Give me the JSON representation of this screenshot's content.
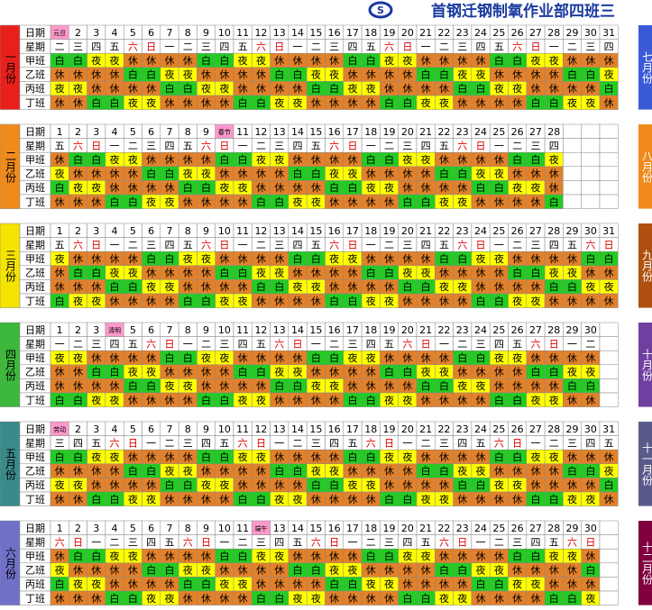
{
  "header": {
    "title": "首钢迁钢制氧作业部四班三"
  },
  "row_labels": [
    "日期",
    "星期",
    "甲班",
    "乙班",
    "丙班",
    "丁班"
  ],
  "months": [
    {
      "name": "一月份",
      "color": "#e8201c",
      "days": [
        "元旦",
        2,
        3,
        4,
        5,
        6,
        7,
        8,
        9,
        10,
        11,
        12,
        13,
        14,
        15,
        16,
        17,
        18,
        19,
        20,
        21,
        22,
        23,
        24,
        25,
        26,
        27,
        28,
        29,
        30,
        31
      ],
      "weekdays": "二三四五六日一二三四五六日一二三四五六日一二三四五六日一二三四",
      "shifts": [
        "白白夜夜休休休休白白夜夜休休休休白白夜夜休休休休白白夜夜休休休",
        "休休休休白白夜夜休休休休白白夜夜休休休休白白夜夜休休休休白白夜",
        "夜夜休休休休白白夜夜休休休休白白夜夜休休休休白白夜夜休休休休白",
        "休休白白夜夜休休休休白白夜夜休休休休白白夜夜休休休休白白夜夜休"
      ]
    },
    {
      "name": "二月份",
      "color": "#f08a1c",
      "days": [
        1,
        2,
        3,
        4,
        5,
        6,
        7,
        8,
        9,
        "春节",
        11,
        12,
        13,
        14,
        15,
        16,
        17,
        18,
        19,
        20,
        21,
        22,
        23,
        24,
        25,
        26,
        27,
        28
      ],
      "weekdays": "五六日一二三四五六日一二三四五六日一二三四五六日一二三四",
      "shifts": [
        "休白白夜夜休休休休白白夜夜休休休休白白夜夜休休休休白白夜",
        "夜休休休休白白夜夜休休休休白白夜夜休休休休白白夜夜休休休",
        "白夜夜休休休休白白夜夜休休休休白白夜夜休休休休白白夜夜休",
        "休休休白白夜夜休休休休白白夜夜休休休休白白夜夜休休休休白"
      ]
    },
    {
      "name": "三月份",
      "color": "#f5e400",
      "days": [
        1,
        2,
        3,
        4,
        5,
        6,
        7,
        8,
        9,
        10,
        11,
        12,
        13,
        14,
        15,
        16,
        17,
        18,
        19,
        20,
        21,
        22,
        23,
        24,
        25,
        26,
        27,
        28,
        29,
        30,
        31
      ],
      "weekdays": "五六日一二三四五六日一二三四五六日一二三四五六日一二三四五六日",
      "shifts": [
        "夜休休休休白白夜夜休休休休白白夜夜休休休休白白夜夜休休休休白白",
        "休白白夜夜休休休休白白夜夜休休休休白白夜夜休休休休白白夜夜休休",
        "休休休白白夜夜休休休休白白夜夜休休休休白白夜夜休休休休白白夜夜",
        "白夜夜休休休休白白夜夜休休休休白白夜夜休休休休白白夜夜休休休休"
      ]
    },
    {
      "name": "四月份",
      "color": "#3cb83c",
      "days": [
        1,
        2,
        3,
        "清明",
        5,
        6,
        7,
        8,
        9,
        10,
        11,
        12,
        13,
        14,
        15,
        16,
        17,
        18,
        19,
        20,
        21,
        22,
        23,
        24,
        25,
        26,
        27,
        28,
        29,
        30
      ],
      "weekdays": "一二三四五六日一二三四五六日一二三四五六日一二三四五六日一二",
      "shifts": [
        "夜夜休休休休白白夜夜休休休休白白夜夜休休休休白白夜夜休休休休",
        "休休白白夜夜休休休休白白夜夜休休休休白白夜夜休休休休白白夜夜",
        "休休休休白白夜夜休休休休白白夜夜休休休休白白夜夜休休休休白白",
        "白白夜夜休休休休白白夜夜休休休休白白夜夜休休休休白白夜夜休休"
      ]
    },
    {
      "name": "五月份",
      "color": "#3a8a8a",
      "days": [
        "劳动",
        2,
        3,
        4,
        5,
        6,
        7,
        8,
        9,
        10,
        11,
        12,
        13,
        14,
        15,
        16,
        17,
        18,
        19,
        20,
        21,
        22,
        23,
        24,
        25,
        26,
        27,
        28,
        29,
        30,
        31
      ],
      "weekdays": "三四五六日一二三四五六日一二三四五六日一二三四五六日一二三四五",
      "shifts": [
        "白白夜夜休休休休白白夜夜休休休休白白夜夜休休休休白白夜夜休休休",
        "休休休休白白夜夜休休休休白白夜夜休休休休白白夜夜休休休休白白夜",
        "夜夜休休休休白白夜夜休休休休白白夜夜休休休休白白夜夜休休休休白",
        "休休白白夜夜休休休休白白夜夜休休休休白白夜夜休休休休白白夜夜休"
      ]
    },
    {
      "name": "六月份",
      "color": "#7070c8",
      "days": [
        1,
        2,
        3,
        4,
        5,
        6,
        7,
        8,
        9,
        10,
        11,
        "端午",
        13,
        14,
        15,
        16,
        17,
        18,
        19,
        20,
        21,
        22,
        23,
        24,
        25,
        26,
        27,
        28,
        29,
        30
      ],
      "weekdays": "六日一二三四五六日一二三四五六日一二三四五六日一二三四五六日",
      "shifts": [
        "休白白夜夜休休休休白白夜夜休休休休白白夜夜休休休休白白夜夜休",
        "夜休休休休白白夜夜休休休休白白夜夜休休休休白白夜夜休休休休白",
        "白夜夜休休休休白白夜夜休休休休白白夜夜休休休休白白夜夜休休休",
        "休休休白白夜夜休休休休白白夜夜休休休休白白夜夜休休休休白白夜"
      ]
    }
  ],
  "right_months": [
    {
      "name": "七月份",
      "color": "#3a5ad8"
    },
    {
      "name": "八月份",
      "color": "#f08a1c"
    },
    {
      "name": "九月份",
      "color": "#b05010"
    },
    {
      "name": "十月份",
      "color": "#7040a0"
    },
    {
      "name": "十一月份",
      "color": "#5a5a8a"
    },
    {
      "name": "十二月份",
      "color": "#800040"
    }
  ]
}
